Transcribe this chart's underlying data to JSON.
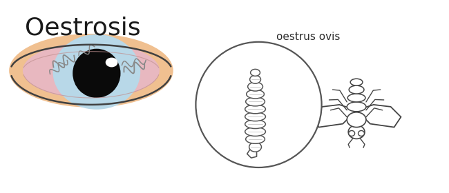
{
  "title": "Oestrosis",
  "subtitle": "oestrus ovis",
  "bg_color": "#ffffff",
  "skin_color": "#F0C090",
  "eye_blue_color": "#B8D8E8",
  "pink_color": "#E8B8C0",
  "pupil_color": "#0a0a0a",
  "highlight_color": "#ffffff",
  "outline_color": "#404040",
  "circle_color": "#555555",
  "larva_color": "#555555",
  "fly_color": "#444444",
  "title_fontsize": 26,
  "subtitle_fontsize": 11
}
